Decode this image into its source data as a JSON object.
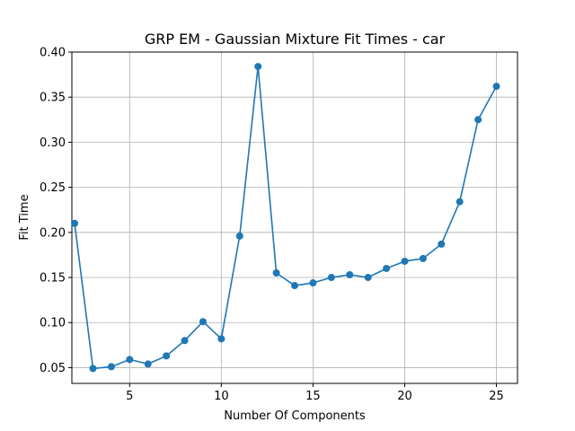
{
  "chart_data": {
    "type": "line",
    "title": "GRP EM - Gaussian Mixture Fit Times - car",
    "xlabel": "Number Of Components",
    "ylabel": "Fit Time",
    "xlim": [
      1.85,
      26.15
    ],
    "ylim": [
      0.0325,
      0.4
    ],
    "xticks": [
      5,
      10,
      15,
      20,
      25
    ],
    "yticks": [
      0.05,
      0.1,
      0.15,
      0.2,
      0.25,
      0.3,
      0.35,
      0.4
    ],
    "xtick_labels": [
      "5",
      "10",
      "15",
      "20",
      "25"
    ],
    "ytick_labels": [
      "0.05",
      "0.10",
      "0.15",
      "0.20",
      "0.25",
      "0.30",
      "0.35",
      "0.40"
    ],
    "grid": true,
    "marker": "circle",
    "series": [
      {
        "color": "#1f77b4",
        "x": [
          2,
          3,
          4,
          5,
          6,
          7,
          8,
          9,
          10,
          11,
          12,
          13,
          14,
          15,
          16,
          17,
          18,
          19,
          20,
          21,
          22,
          23,
          24,
          25
        ],
        "values": [
          0.21,
          0.049,
          0.051,
          0.059,
          0.054,
          0.063,
          0.08,
          0.101,
          0.082,
          0.196,
          0.384,
          0.155,
          0.141,
          0.144,
          0.15,
          0.153,
          0.15,
          0.16,
          0.168,
          0.171,
          0.187,
          0.234,
          0.325,
          0.362
        ]
      }
    ]
  }
}
